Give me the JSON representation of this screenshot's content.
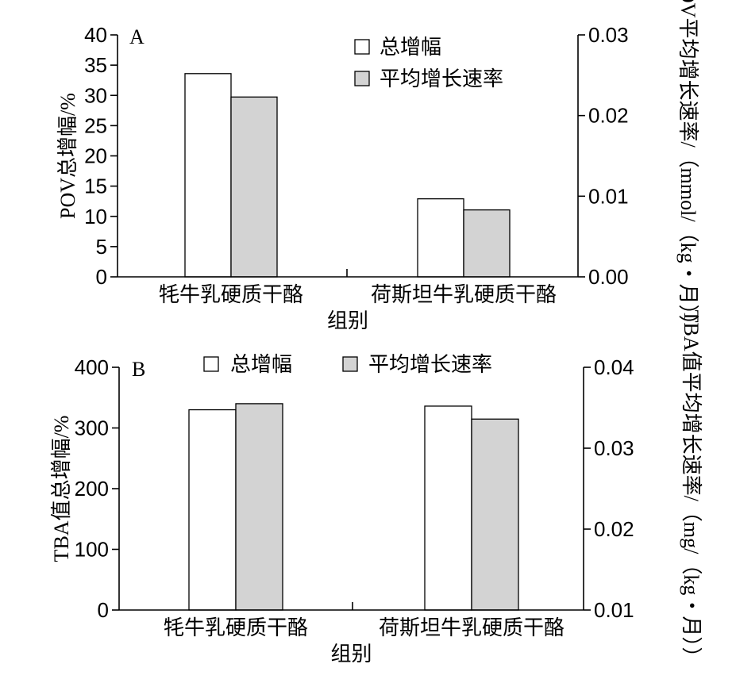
{
  "chart_data": [
    {
      "type": "bar",
      "panel_label": "A",
      "categories": [
        "牦牛乳硬质干酪",
        "荷斯坦牛乳硬质干酪"
      ],
      "xlabel": "组别",
      "ylabel": "POV总增幅/%",
      "y2label": "POV平均增长速率/（mmol/（kg・月））",
      "ylim": [
        0,
        40
      ],
      "y2lim": [
        0,
        0.03
      ],
      "yticks": [
        "0",
        "5",
        "10",
        "15",
        "20",
        "25",
        "30",
        "35",
        "40"
      ],
      "y2ticks": [
        "0.00",
        "0.01",
        "0.02",
        "0.03"
      ],
      "legend_position": "top-center-right",
      "series": [
        {
          "name": "总增幅",
          "axis": "left",
          "color": "#ffffff",
          "values": [
            33.6,
            12.9
          ]
        },
        {
          "name": "平均增长速率",
          "axis": "right",
          "color": "#d3d3d3",
          "values": [
            0.0223,
            0.0083
          ]
        }
      ]
    },
    {
      "type": "bar",
      "panel_label": "B",
      "categories": [
        "牦牛乳硬质干酪",
        "荷斯坦牛乳硬质干酪"
      ],
      "xlabel": "组别",
      "ylabel": "TBA值总增幅/%",
      "y2label": "TBA值平均增长速率/（mg/（kg・月））",
      "ylim": [
        0,
        400
      ],
      "y2lim": [
        0.01,
        0.04
      ],
      "yticks": [
        "0",
        "100",
        "200",
        "300",
        "400"
      ],
      "y2ticks": [
        "0.01",
        "0.02",
        "0.03",
        "0.04"
      ],
      "legend_position": "top",
      "series": [
        {
          "name": "总增幅",
          "axis": "left",
          "color": "#ffffff",
          "values": [
            330,
            336
          ]
        },
        {
          "name": "平均增长速率",
          "axis": "right",
          "color": "#d3d3d3",
          "values": [
            0.0355,
            0.0336
          ]
        }
      ]
    }
  ]
}
